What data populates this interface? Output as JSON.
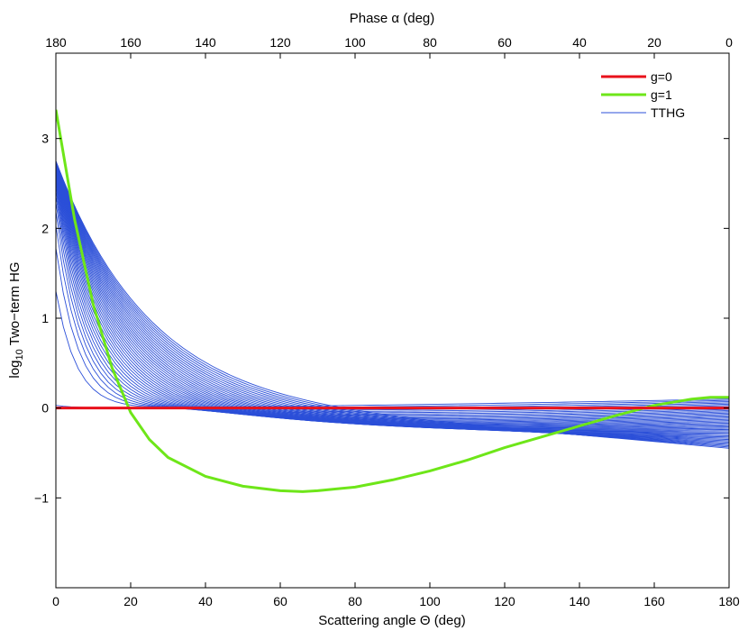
{
  "chart_data": {
    "type": "line",
    "title": "",
    "xlabel": "Scattering angle Θ (deg)",
    "ylabel_prefix": "log",
    "ylabel_sub": "10",
    "ylabel_suffix": " Two−term HG",
    "x2label": "Phase α (deg)",
    "xlim": [
      0,
      180
    ],
    "ylim": [
      -2,
      3.95
    ],
    "x_ticks": [
      0,
      20,
      40,
      60,
      80,
      100,
      120,
      140,
      160,
      180
    ],
    "x_tick_labels": [
      "0",
      "20",
      "40",
      "60",
      "80",
      "100",
      "120",
      "140",
      "160",
      "180"
    ],
    "x2_tick_labels": [
      "180",
      "160",
      "140",
      "120",
      "100",
      "80",
      "60",
      "40",
      "20",
      "0"
    ],
    "y_ticks": [
      -1,
      0,
      1,
      2,
      3
    ],
    "y_tick_labels": [
      "−1",
      "0",
      "1",
      "2",
      "3"
    ],
    "grid": false,
    "legend_position": "top-right",
    "colors": {
      "g0": "#e8111b",
      "g1": "#6ee619",
      "tthg": "#2b4fd8"
    },
    "series": [
      {
        "name": "g=0",
        "role": "g0",
        "x": [
          0,
          180
        ],
        "values": [
          0,
          0
        ]
      },
      {
        "name": "g=1",
        "role": "g1",
        "x": [
          0,
          5,
          10,
          15,
          20,
          25,
          30,
          40,
          50,
          60,
          66,
          70,
          80,
          90,
          100,
          110,
          120,
          130,
          140,
          150,
          160,
          170,
          175,
          180
        ],
        "values": [
          3.32,
          2.1,
          1.15,
          0.45,
          -0.05,
          -0.35,
          -0.55,
          -0.76,
          -0.87,
          -0.92,
          -0.93,
          -0.92,
          -0.88,
          -0.8,
          -0.7,
          -0.58,
          -0.44,
          -0.32,
          -0.2,
          -0.08,
          0.03,
          0.1,
          0.12,
          0.12
        ]
      },
      {
        "name": "TTHG",
        "role": "tthg",
        "family": {
          "count": 40,
          "y0_max": 2.75,
          "y0_min": 0.03,
          "y180_start": 0.1,
          "y180_end": -0.45
        }
      }
    ]
  }
}
